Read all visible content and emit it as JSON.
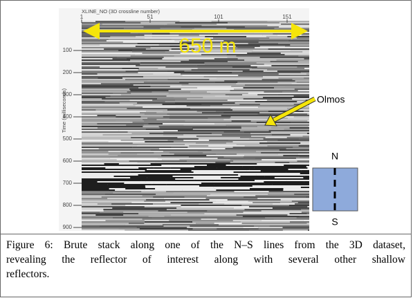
{
  "figure": {
    "x_axis": {
      "label": "XLINE_NO (3D crossline number)",
      "ticks": [
        1,
        51,
        101,
        151
      ]
    },
    "y_axis": {
      "label": "Time (milliseconds)",
      "ticks": [
        100,
        200,
        300,
        400,
        500,
        600,
        700,
        800,
        900
      ]
    },
    "annotations": {
      "scale": "650 m",
      "pointer": "Olmos",
      "north": "N",
      "south": "S"
    },
    "caption": [
      "Figure 6: Brute stack along one of the N–S lines from the 3D dataset,",
      "revealing the reflector of interest along with several other shallow",
      "reflectors."
    ]
  }
}
